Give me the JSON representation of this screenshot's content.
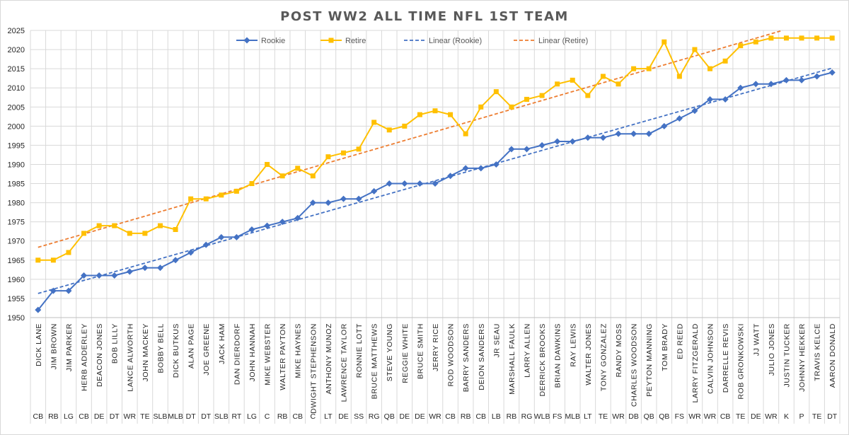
{
  "chart_data": {
    "type": "line",
    "title": "POST WW2 ALL TIME NFL 1ST TEAM",
    "ylim": [
      1950,
      2025
    ],
    "y_ticks": [
      1950,
      1955,
      1960,
      1965,
      1970,
      1975,
      1980,
      1985,
      1990,
      1995,
      2000,
      2005,
      2010,
      2015,
      2020,
      2025
    ],
    "grid": "horizontal and vertical",
    "legend_position": "top",
    "categories": [
      "DICK LANE",
      "JIM BROWN",
      "JIM PARKER",
      "HERB ADDERLEY",
      "DEACON JONES",
      "BOB LILLY",
      "LANCE ALWORTH",
      "JOHN MACKEY",
      "BOBBY BELL",
      "DICK BUTKUS",
      "ALAN PAGE",
      "JOE GREENE",
      "JACK HAM",
      "DAN DIERDORF",
      "JOHN HANNAH",
      "MIKE WEBSTER",
      "WALTER PAYTON",
      "MIKE HAYNES",
      "DWIGHT STEPHENSON",
      "ANTHONY MUNOZ",
      "LAWRENCE TAYLOR",
      "RONNIE LOTT",
      "BRUCE MATTHEWS",
      "STEVE YOUNG",
      "REGGIE WHITE",
      "BRUCE SMITH",
      "JERRY RICE",
      "ROD WOODSON",
      "BARRY SANDERS",
      "DEION SANDERS",
      "JR SEAU",
      "MARSHALL FAULK",
      "LARRY ALLEN",
      "DERRICK BROOKS",
      "BRIAN DAWKINS",
      "RAY LEWIS",
      "WALTER JONES",
      "TONY GONZALEZ",
      "RANDY MOSS",
      "CHARLES WOODSON",
      "PEYTON MANNING",
      "TOM BRADY",
      "ED REED",
      "LARRY FITZGERALD",
      "CALVIN JOHNSON",
      "DARRELLE REVIS",
      "ROB GRONKOWSKI",
      "JJ WATT",
      "JULIO JONES",
      "JUSTIN TUCKER",
      "JOHNNY HEKKER",
      "TRAVIS KELCE",
      "AARON DONALD"
    ],
    "positions": [
      "CB",
      "RB",
      "LG",
      "CB",
      "DE",
      "DT",
      "WR",
      "TE",
      "SLB",
      "MLB",
      "DT",
      "DT",
      "SLB",
      "RT",
      "LG",
      "C",
      "RB",
      "CB",
      "C",
      "LT",
      "DE",
      "SS",
      "RG",
      "QB",
      "DE",
      "DE",
      "WR",
      "CB",
      "RB",
      "CB",
      "LB",
      "RB",
      "RG",
      "WLB",
      "FS",
      "MLB",
      "LT",
      "TE",
      "WR",
      "DB",
      "QB",
      "QB",
      "FS",
      "WR",
      "WR",
      "CB",
      "TE",
      "DE",
      "WR",
      "K",
      "P",
      "TE",
      "DT"
    ],
    "series": [
      {
        "name": "Rookie",
        "color": "#4472C4",
        "marker": "diamond",
        "values": [
          1952,
          1957,
          1957,
          1961,
          1961,
          1961,
          1962,
          1963,
          1963,
          1965,
          1967,
          1969,
          1971,
          1971,
          1973,
          1974,
          1975,
          1976,
          1980,
          1980,
          1981,
          1981,
          1983,
          1985,
          1985,
          1985,
          1985,
          1987,
          1989,
          1989,
          1990,
          1994,
          1994,
          1995,
          1996,
          1996,
          1997,
          1997,
          1998,
          1998,
          1998,
          2000,
          2002,
          2004,
          2007,
          2007,
          2010,
          2011,
          2011,
          2012,
          2012,
          2013,
          2014
        ]
      },
      {
        "name": "Retire",
        "color": "#FFC000",
        "marker": "square",
        "values": [
          1965,
          1965,
          1967,
          1972,
          1974,
          1974,
          1972,
          1972,
          1974,
          1973,
          1981,
          1981,
          1982,
          1983,
          1985,
          1990,
          1987,
          1989,
          1987,
          1992,
          1993,
          1994,
          2001,
          1999,
          2000,
          2003,
          2004,
          2003,
          1998,
          2005,
          2009,
          2005,
          2007,
          2008,
          2011,
          2012,
          2008,
          2013,
          2011,
          2015,
          2015,
          2022,
          2013,
          2020,
          2015,
          2017,
          2021,
          2022,
          2023,
          2023,
          2023,
          2023,
          2023
        ]
      },
      {
        "name": "Linear (Rookie)",
        "color": "#4472C4",
        "style": "dashed"
      },
      {
        "name": "Linear (Retire)",
        "color": "#ED7D31",
        "style": "dashed"
      }
    ]
  }
}
